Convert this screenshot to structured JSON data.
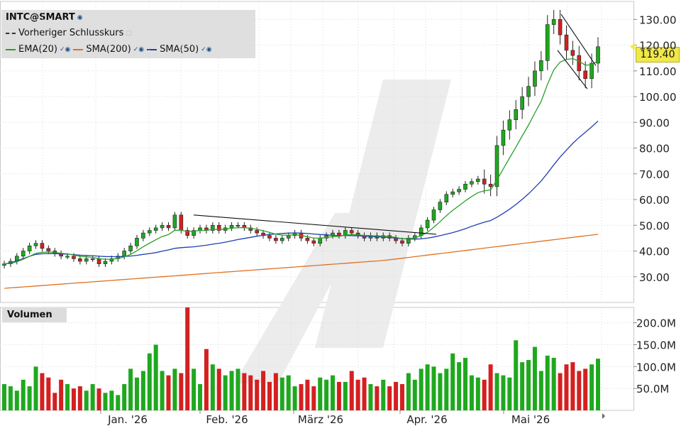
{
  "legend": {
    "symbol": "INTC@SMART",
    "previous_close": "Vorheriger Schlusskurs",
    "indicators": [
      {
        "label": "EMA(20)",
        "color": "#2aa02a"
      },
      {
        "label": "SMA(200)",
        "color": "#e07020"
      },
      {
        "label": "SMA(50)",
        "color": "#2040b0"
      }
    ]
  },
  "volume_title": "Volumen",
  "last_price": "119.40",
  "chart_data": {
    "type": "candlestick",
    "price_axis": {
      "ticks": [
        "130.00",
        "120.00",
        "110.00",
        "100.00",
        "90.00",
        "80.00",
        "70.00",
        "60.00",
        "50.00",
        "40.00",
        "30.00"
      ],
      "range": [
        20,
        137
      ]
    },
    "volume_axis": {
      "ticks": [
        "200.0M",
        "150.0M",
        "100.0M",
        "50.0M"
      ],
      "range": [
        0,
        235
      ]
    },
    "x_labels": [
      "Jan. '26",
      "Feb. '26",
      "März '26",
      "Apr. '26",
      "Mai '26"
    ],
    "candles_close": [
      35,
      36,
      38,
      40,
      42,
      43,
      41,
      40,
      39,
      38,
      38,
      37,
      36,
      37,
      37,
      35,
      36,
      37,
      38,
      40,
      42,
      45,
      47,
      48,
      49,
      50,
      49,
      54,
      48,
      46,
      48,
      49,
      48,
      50,
      48,
      49,
      50,
      50,
      49,
      48,
      47,
      46,
      45,
      44,
      45,
      46,
      47,
      45,
      44,
      43,
      45,
      46,
      47,
      46,
      48,
      47,
      46,
      45,
      46,
      45,
      46,
      45,
      44,
      43,
      45,
      46,
      49,
      52,
      56,
      59,
      62,
      63,
      64,
      66,
      67,
      68,
      66,
      65,
      81,
      87,
      91,
      95,
      100,
      104,
      110,
      114,
      128,
      130,
      124,
      118,
      116,
      110,
      107,
      113,
      119.4
    ],
    "volume_M": [
      60,
      55,
      45,
      70,
      55,
      100,
      85,
      75,
      40,
      70,
      60,
      50,
      55,
      45,
      60,
      50,
      40,
      45,
      35,
      60,
      95,
      75,
      90,
      130,
      150,
      90,
      80,
      95,
      85,
      235,
      95,
      60,
      140,
      105,
      95,
      80,
      90,
      95,
      85,
      80,
      70,
      90,
      65,
      85,
      75,
      80,
      55,
      60,
      70,
      55,
      75,
      70,
      80,
      65,
      65,
      90,
      70,
      75,
      60,
      55,
      70,
      55,
      65,
      60,
      85,
      70,
      95,
      105,
      100,
      85,
      95,
      130,
      110,
      120,
      80,
      75,
      70,
      105,
      85,
      80,
      75,
      160,
      110,
      115,
      145,
      90,
      125,
      120,
      85,
      105,
      110,
      90,
      95,
      105,
      118
    ]
  }
}
